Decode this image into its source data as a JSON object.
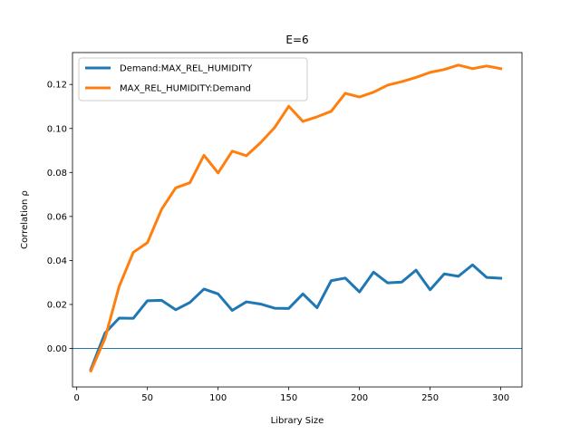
{
  "chart_data": {
    "type": "line",
    "title": "E=6",
    "xlabel": "Library Size",
    "ylabel": "Correlation ρ",
    "xlim": [
      -3,
      315
    ],
    "ylim": [
      -0.0175,
      0.1345
    ],
    "xticks": [
      0,
      50,
      100,
      150,
      200,
      250,
      300
    ],
    "xtick_labels": [
      "0",
      "50",
      "100",
      "150",
      "200",
      "250",
      "300"
    ],
    "yticks": [
      0.0,
      0.02,
      0.04,
      0.06,
      0.08,
      0.1,
      0.12
    ],
    "ytick_labels": [
      "0.00",
      "0.02",
      "0.04",
      "0.06",
      "0.08",
      "0.10",
      "0.12"
    ],
    "grid": false,
    "legend_position": "top-left",
    "hline": {
      "y": 0,
      "color": "#1f77b4"
    },
    "x": [
      10,
      20,
      30,
      40,
      50,
      60,
      70,
      80,
      90,
      100,
      110,
      120,
      130,
      140,
      150,
      160,
      170,
      180,
      190,
      200,
      210,
      220,
      230,
      240,
      250,
      260,
      270,
      280,
      290,
      300
    ],
    "series": [
      {
        "name": "Demand:MAX_REL_HUMIDITY",
        "color": "#1f77b4",
        "values": [
          -0.0095,
          0.007,
          0.0138,
          0.0137,
          0.0217,
          0.0219,
          0.0176,
          0.0209,
          0.027,
          0.0248,
          0.0173,
          0.0212,
          0.0202,
          0.0183,
          0.0182,
          0.0248,
          0.0185,
          0.0308,
          0.032,
          0.0257,
          0.0347,
          0.0298,
          0.0302,
          0.0356,
          0.0267,
          0.0339,
          0.0328,
          0.038,
          0.0323,
          0.0319
        ]
      },
      {
        "name": "MAX_REL_HUMIDITY:Demand",
        "color": "#ff7f0e",
        "values": [
          -0.0102,
          0.0046,
          0.0282,
          0.0437,
          0.0481,
          0.0632,
          0.073,
          0.0753,
          0.0878,
          0.0798,
          0.0897,
          0.0876,
          0.0935,
          0.1004,
          0.1101,
          0.1032,
          0.1053,
          0.1078,
          0.116,
          0.1143,
          0.1165,
          0.1197,
          0.1213,
          0.1232,
          0.1255,
          0.1268,
          0.1288,
          0.1272,
          0.1284,
          0.1272
        ]
      }
    ]
  }
}
